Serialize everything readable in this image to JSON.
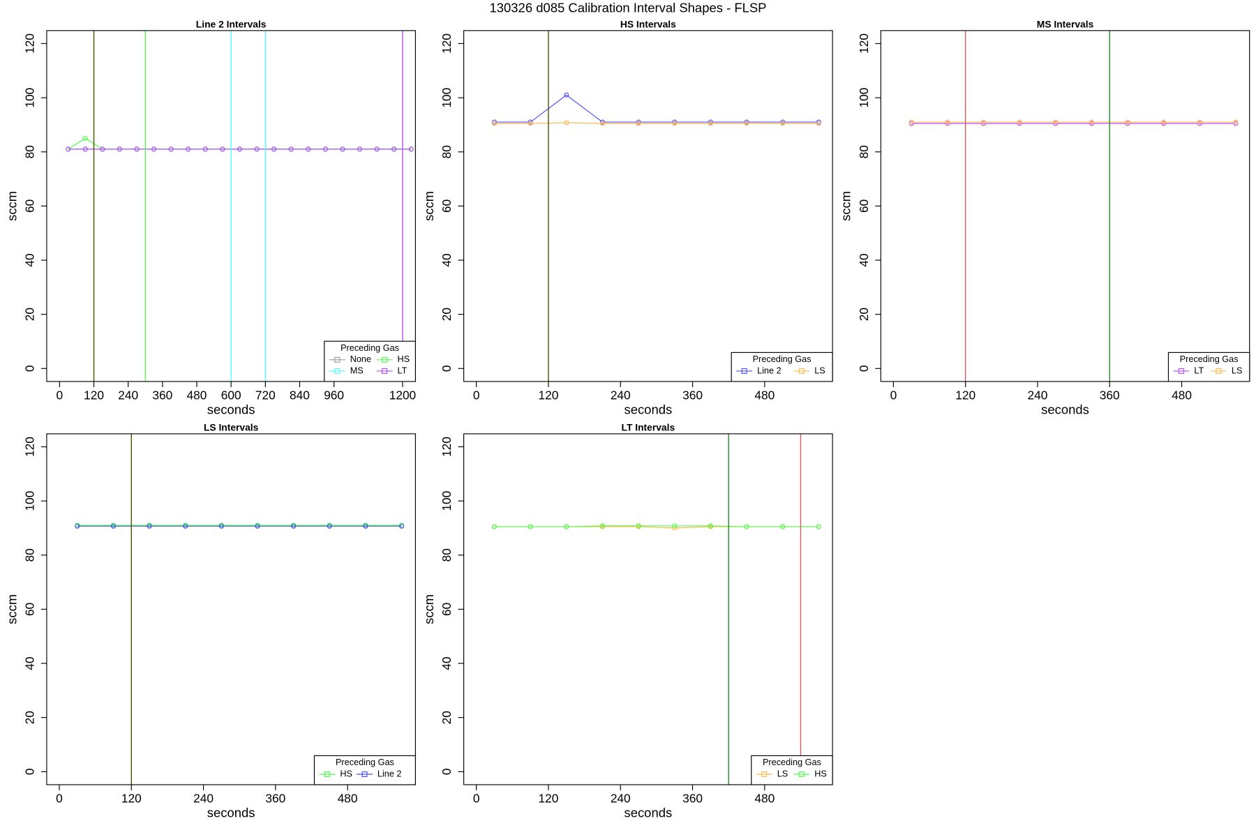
{
  "title": "130326   d085   Calibration Interval Shapes - FLSP",
  "chart_data": [
    {
      "type": "line",
      "title": "Line 2 Intervals",
      "x_label": "seconds",
      "y_label": "sccm",
      "legend_title": "Preceding Gas",
      "legend_position": "bottomright",
      "legend_columns": 2,
      "x": [
        30,
        90,
        150,
        210,
        270,
        330,
        390,
        450,
        510,
        570,
        630,
        690,
        750,
        810,
        870,
        930,
        990,
        1050,
        1110,
        1170,
        1230
      ],
      "series": [
        {
          "name": "None",
          "color": "#9a9a9a",
          "values": [
            81,
            81,
            81,
            81,
            81,
            81,
            81,
            81,
            81,
            81,
            81,
            81,
            81,
            81,
            81,
            81,
            81,
            81,
            81,
            81,
            81
          ]
        },
        {
          "name": "MS",
          "color": "#4dffff",
          "values": [
            81,
            81,
            81,
            81,
            81,
            81,
            81,
            81,
            81,
            81,
            81,
            81,
            81,
            81,
            81,
            81,
            81,
            81,
            81,
            81,
            81
          ]
        },
        {
          "name": "HS",
          "color": "#4dff4d",
          "values": [
            81,
            85,
            81,
            81,
            81,
            81,
            81,
            81,
            81,
            81,
            81,
            81,
            81,
            81,
            81,
            81,
            81,
            81,
            81,
            81,
            81
          ]
        },
        {
          "name": "LT",
          "color": "#b84dff",
          "values": [
            81,
            81,
            81,
            81,
            81,
            81,
            81,
            81,
            81,
            81,
            81,
            81,
            81,
            81,
            81,
            81,
            81,
            81,
            81,
            81,
            81
          ]
        }
      ],
      "vlines": [
        {
          "x": 120,
          "color": "#4d4d00"
        },
        {
          "x": 300,
          "color": "#4dff4d"
        },
        {
          "x": 600,
          "color": "#4dffff"
        },
        {
          "x": 720,
          "color": "#4dffff"
        },
        {
          "x": 1200,
          "color": "#b84dff"
        }
      ],
      "xlim": [
        -45,
        1245
      ],
      "ylim": [
        -4.8,
        124.8
      ],
      "xticks": [
        0,
        120,
        240,
        360,
        480,
        600,
        720,
        840,
        960,
        1200
      ],
      "yticks": [
        0,
        20,
        40,
        60,
        80,
        100,
        120
      ]
    },
    {
      "type": "line",
      "title": "HS Intervals",
      "x_label": "seconds",
      "y_label": "sccm",
      "legend_title": "Preceding Gas",
      "legend_position": "bottomright",
      "legend_columns": 2,
      "x": [
        30,
        90,
        150,
        210,
        270,
        330,
        390,
        450,
        510,
        570
      ],
      "series": [
        {
          "name": "Line 2",
          "color": "#4d4dff",
          "values": [
            91,
            91,
            101,
            91,
            91,
            91,
            91,
            91,
            91,
            91
          ]
        },
        {
          "name": "LS",
          "color": "#ffb84d",
          "values": [
            90.5,
            90.5,
            90.8,
            90.5,
            90.5,
            90.5,
            90.5,
            90.5,
            90.5,
            90.5
          ]
        }
      ],
      "vlines": [
        {
          "x": 120,
          "color": "#4d4d00"
        }
      ],
      "xlim": [
        -21,
        593
      ],
      "ylim": [
        -4.8,
        124.8
      ],
      "xticks": [
        0,
        120,
        240,
        360,
        480
      ],
      "yticks": [
        0,
        20,
        40,
        60,
        80,
        100,
        120
      ]
    },
    {
      "type": "line",
      "title": "MS Intervals",
      "x_label": "seconds",
      "y_label": "sccm",
      "legend_title": "Preceding Gas",
      "legend_position": "bottomright",
      "legend_columns": 2,
      "x": [
        30,
        90,
        150,
        210,
        270,
        330,
        390,
        450,
        510,
        570
      ],
      "series": [
        {
          "name": "LT",
          "color": "#b84dff",
          "values": [
            90.5,
            90.5,
            90.5,
            90.5,
            90.5,
            90.5,
            90.5,
            90.5,
            90.5,
            90.5
          ]
        },
        {
          "name": "LS",
          "color": "#ffb84d",
          "values": [
            91,
            91,
            91,
            91,
            91,
            91,
            91,
            91,
            91,
            91
          ]
        }
      ],
      "vlines": [
        {
          "x": 120,
          "color": "#cd5c5c"
        },
        {
          "x": 360,
          "color": "#228b22"
        }
      ],
      "xlim": [
        -21,
        593
      ],
      "ylim": [
        -4.8,
        124.8
      ],
      "xticks": [
        0,
        120,
        240,
        360,
        480
      ],
      "yticks": [
        0,
        20,
        40,
        60,
        80,
        100,
        120
      ]
    },
    {
      "type": "line",
      "title": "LS Intervals",
      "x_label": "seconds",
      "y_label": "sccm",
      "legend_title": "Preceding Gas",
      "legend_position": "bottomright",
      "legend_columns": 2,
      "x": [
        30,
        90,
        150,
        210,
        270,
        330,
        390,
        450,
        510,
        570
      ],
      "series": [
        {
          "name": "HS",
          "color": "#4dff4d",
          "values": [
            91,
            91,
            91,
            91,
            91,
            91,
            91,
            91,
            91,
            91
          ]
        },
        {
          "name": "Line 2",
          "color": "#4d4dff",
          "values": [
            90.7,
            90.7,
            90.7,
            90.7,
            90.7,
            90.7,
            90.7,
            90.7,
            90.7,
            90.7
          ]
        }
      ],
      "vlines": [
        {
          "x": 120,
          "color": "#4d4d00"
        }
      ],
      "xlim": [
        -21,
        593
      ],
      "ylim": [
        -4.8,
        124.8
      ],
      "xticks": [
        0,
        120,
        240,
        360,
        480
      ],
      "yticks": [
        0,
        20,
        40,
        60,
        80,
        100,
        120
      ]
    },
    {
      "type": "line",
      "title": "LT Intervals",
      "x_label": "seconds",
      "y_label": "sccm",
      "legend_title": "Preceding Gas",
      "legend_position": "bottomright",
      "legend_columns": 2,
      "x": [
        30,
        90,
        150,
        210,
        270,
        330,
        390,
        450,
        510,
        570
      ],
      "series": [
        {
          "name": "LS",
          "color": "#ffb84d",
          "values": [
            90.5,
            90.5,
            90.5,
            90.5,
            90.5,
            90,
            90.5,
            90.5,
            90.5,
            90.5
          ]
        },
        {
          "name": "HS",
          "color": "#4dff4d",
          "values": [
            90.5,
            90.5,
            90.5,
            90.8,
            90.8,
            90.8,
            90.8,
            90.5,
            90.5,
            90.5
          ]
        }
      ],
      "vlines": [
        {
          "x": 420,
          "color": "#228b22"
        },
        {
          "x": 540,
          "color": "#cd5c5c"
        }
      ],
      "xlim": [
        -21,
        593
      ],
      "ylim": [
        -4.8,
        124.8
      ],
      "xticks": [
        0,
        120,
        240,
        360,
        480
      ],
      "yticks": [
        0,
        20,
        40,
        60,
        80,
        100,
        120
      ]
    }
  ]
}
